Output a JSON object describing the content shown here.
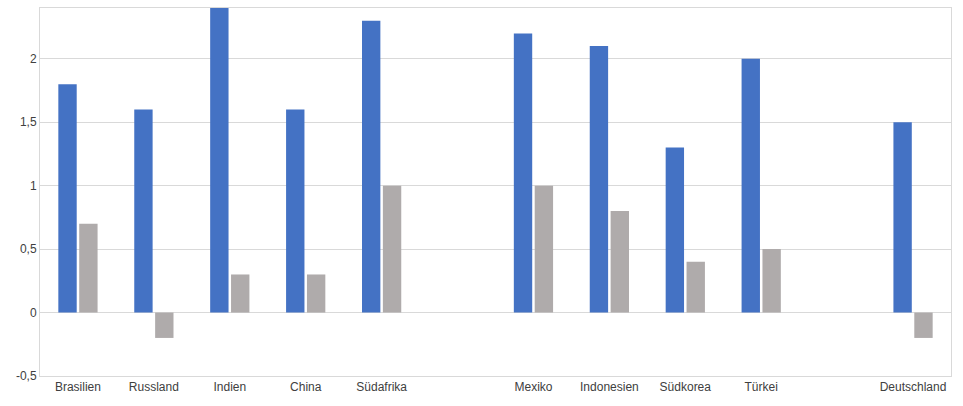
{
  "chart_data": {
    "type": "bar",
    "categories": [
      "Brasilien",
      "Russland",
      "Indien",
      "China",
      "Südafrika",
      null,
      "Mexiko",
      "Indonesien",
      "Südkorea",
      "Türkei",
      null,
      "Deutschland"
    ],
    "series": [
      {
        "color": "#4472c4",
        "values": [
          1.8,
          1.6,
          2.4,
          1.6,
          2.3,
          null,
          2.2,
          2.1,
          1.3,
          2.0,
          null,
          1.5
        ]
      },
      {
        "color": "#afabab",
        "values": [
          0.7,
          -0.2,
          0.3,
          0.3,
          1.0,
          null,
          1.0,
          0.8,
          0.4,
          0.5,
          null,
          -0.2
        ]
      }
    ],
    "ylim": [
      -0.5,
      2.4
    ],
    "yticks": [
      {
        "value": -0.5,
        "label": "-0,5"
      },
      0,
      {
        "value": 0.5,
        "label": "0,5"
      },
      1,
      {
        "value": 1.5,
        "label": "1,5"
      },
      2
    ],
    "grid": true
  }
}
